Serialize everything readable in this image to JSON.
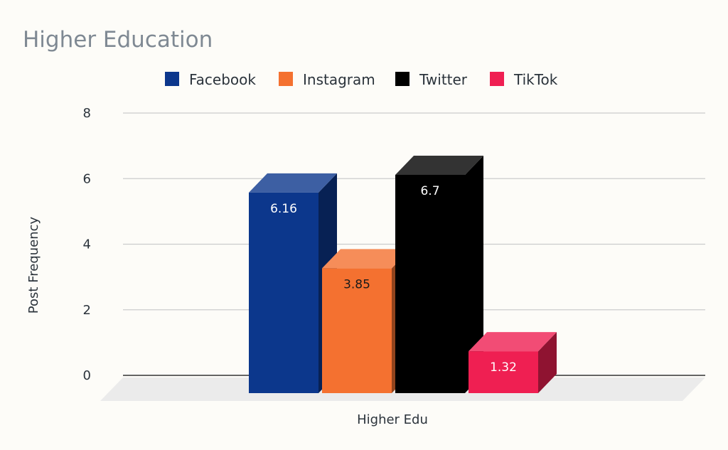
{
  "chart_data": {
    "type": "bar",
    "title": "Higher Education",
    "categories": [
      "Higher Edu"
    ],
    "series": [
      {
        "name": "Facebook",
        "values": [
          6.16
        ],
        "color": "#0c378c",
        "label_color": "#ffffff"
      },
      {
        "name": "Instagram",
        "values": [
          3.85
        ],
        "color": "#f47130",
        "label_color": "#1a1a1a"
      },
      {
        "name": "Twitter",
        "values": [
          6.7
        ],
        "color": "#000000",
        "label_color": "#ffffff"
      },
      {
        "name": "TikTok",
        "values": [
          1.32
        ],
        "color": "#ef1f52",
        "label_color": "#ffffff"
      }
    ],
    "data_labels": [
      "6.16",
      "3.85",
      "6.7",
      "1.32"
    ],
    "xlabel": "Higher Edu",
    "ylabel": "Post Frequency",
    "ylim": [
      0,
      8
    ],
    "yticks": [
      0,
      2,
      4,
      6,
      8
    ],
    "grid": true,
    "legend_position": "top-center",
    "style": "3d-bar"
  }
}
